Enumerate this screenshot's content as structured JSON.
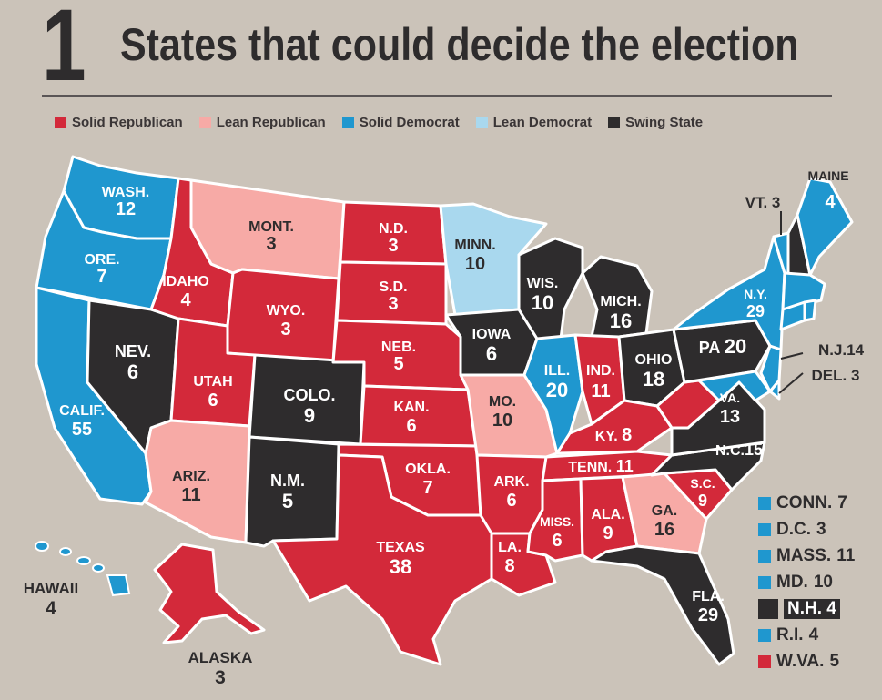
{
  "header": {
    "number": "1",
    "title": "States that could decide the election"
  },
  "colors": {
    "solid_republican": "#d3293a",
    "lean_republican": "#f7aaa6",
    "solid_democrat": "#1f97cf",
    "lean_democrat": "#a9d8ee",
    "swing": "#2e2c2d"
  },
  "legend": [
    {
      "label": "Solid Republican",
      "color": "#d3293a"
    },
    {
      "label": "Lean Republican",
      "color": "#f7aaa6"
    },
    {
      "label": "Solid Democrat",
      "color": "#1f97cf"
    },
    {
      "label": "Lean Democrat",
      "color": "#a9d8ee"
    },
    {
      "label": "Swing State",
      "color": "#2e2c2d"
    }
  ],
  "states": {
    "wash": {
      "name": "WASH.",
      "votes": "12"
    },
    "ore": {
      "name": "ORE.",
      "votes": "7"
    },
    "calif": {
      "name": "CALIF.",
      "votes": "55"
    },
    "nev": {
      "name": "NEV.",
      "votes": "6"
    },
    "idaho": {
      "name": "IDAHO",
      "votes": "4"
    },
    "mont": {
      "name": "MONT.",
      "votes": "3"
    },
    "wyo": {
      "name": "WYO.",
      "votes": "3"
    },
    "utah": {
      "name": "UTAH",
      "votes": "6"
    },
    "colo": {
      "name": "COLO.",
      "votes": "9"
    },
    "ariz": {
      "name": "ARIZ.",
      "votes": "11"
    },
    "nm": {
      "name": "N.M.",
      "votes": "5"
    },
    "nd": {
      "name": "N.D.",
      "votes": "3"
    },
    "sd": {
      "name": "S.D.",
      "votes": "3"
    },
    "neb": {
      "name": "NEB.",
      "votes": "5"
    },
    "kan": {
      "name": "KAN.",
      "votes": "6"
    },
    "okla": {
      "name": "OKLA.",
      "votes": "7"
    },
    "texas": {
      "name": "TEXAS",
      "votes": "38"
    },
    "minn": {
      "name": "MINN.",
      "votes": "10"
    },
    "iowa": {
      "name": "IOWA",
      "votes": "6"
    },
    "mo": {
      "name": "MO.",
      "votes": "10"
    },
    "ark": {
      "name": "ARK.",
      "votes": "6"
    },
    "la": {
      "name": "LA.",
      "votes": "8"
    },
    "wis": {
      "name": "WIS.",
      "votes": "10"
    },
    "ill": {
      "name": "ILL.",
      "votes": "20"
    },
    "mich": {
      "name": "MICH.",
      "votes": "16"
    },
    "ind": {
      "name": "IND.",
      "votes": "11"
    },
    "ohio": {
      "name": "OHIO",
      "votes": "18"
    },
    "ky": {
      "name": "KY.",
      "votes": "8"
    },
    "tenn": {
      "name": "TENN.",
      "votes": "11"
    },
    "miss": {
      "name": "MISS.",
      "votes": "6"
    },
    "ala": {
      "name": "ALA.",
      "votes": "9"
    },
    "ga": {
      "name": "GA.",
      "votes": "16"
    },
    "fla": {
      "name": "FLA.",
      "votes": "29"
    },
    "sc": {
      "name": "S.C.",
      "votes": "9"
    },
    "nc": {
      "name": "N.C.",
      "votes": "15"
    },
    "va": {
      "name": "VA.",
      "votes": "13"
    },
    "pa": {
      "name": "PA",
      "votes": "20"
    },
    "ny": {
      "name": "N.Y.",
      "votes": "29"
    },
    "vt": {
      "name": "VT.",
      "votes": "3"
    },
    "maine": {
      "name": "MAINE",
      "votes": "4"
    },
    "nj": {
      "name": "N.J.",
      "votes": "14"
    },
    "del": {
      "name": "DEL.",
      "votes": "3"
    },
    "hawaii": {
      "name": "HAWAII",
      "votes": "4"
    },
    "alaska": {
      "name": "ALASKA",
      "votes": "3"
    }
  },
  "small_states": [
    {
      "name": "CONN.",
      "votes": "7",
      "color": "#1f97cf"
    },
    {
      "name": "D.C.",
      "votes": "3",
      "color": "#1f97cf"
    },
    {
      "name": "MASS.",
      "votes": "11",
      "color": "#1f97cf"
    },
    {
      "name": "MD.",
      "votes": "10",
      "color": "#1f97cf"
    },
    {
      "name": "N.H.",
      "votes": "4",
      "color": "#2e2c2d"
    },
    {
      "name": "R.I.",
      "votes": "4",
      "color": "#1f97cf"
    },
    {
      "name": "W.VA.",
      "votes": "5",
      "color": "#d3293a"
    }
  ]
}
